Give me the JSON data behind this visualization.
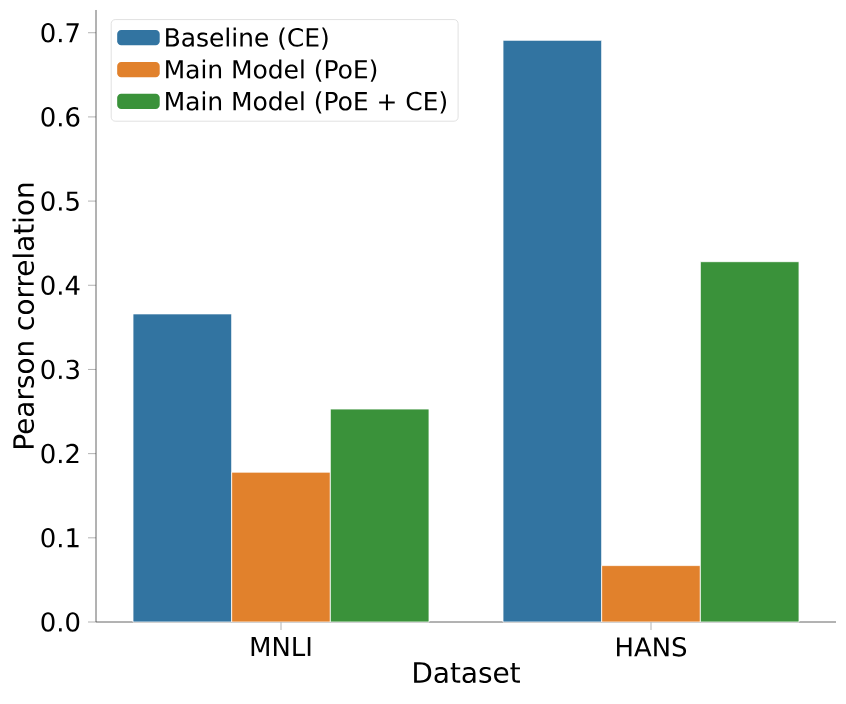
{
  "chart_data": {
    "type": "bar",
    "xlabel": "Dataset",
    "ylabel": "Pearson correlation",
    "categories": [
      "MNLI",
      "HANS"
    ],
    "series": [
      {
        "name": "Baseline (CE)",
        "color": "#3274a1",
        "values": [
          0.366,
          0.691
        ]
      },
      {
        "name": "Main Model (PoE)",
        "color": "#e1812c",
        "values": [
          0.178,
          0.067
        ]
      },
      {
        "name": "Main Model (PoE + CE)",
        "color": "#3a923a",
        "values": [
          0.253,
          0.428
        ]
      }
    ],
    "ylim": [
      0,
      0.727
    ],
    "yticks": [
      {
        "value": 0,
        "label": "0.0"
      },
      0.1,
      0.2,
      0.3,
      0.4,
      0.5,
      0.6,
      0.7
    ],
    "legend": "top left",
    "grid": false
  }
}
